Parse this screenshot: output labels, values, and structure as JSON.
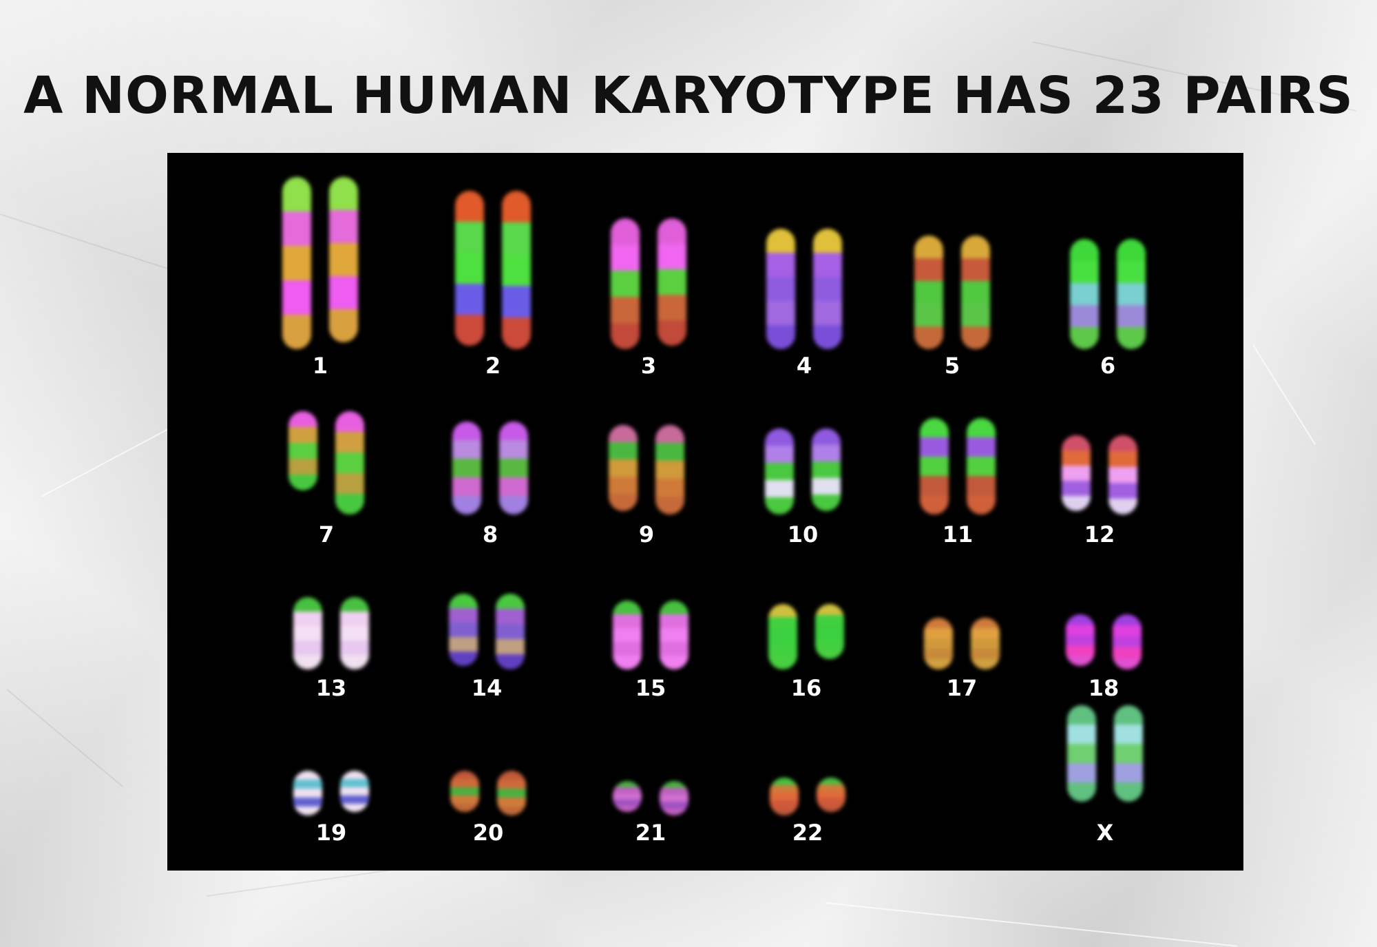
{
  "title": "A NORMAL HUMAN KARYOTYPE HAS 23 PAIRS",
  "pairs": [
    {
      "label": "1",
      "colors": [
        "#8fe04a",
        "#e46bd9",
        "#e0a83a",
        "#ee5cf0",
        "#d9a040"
      ]
    },
    {
      "label": "2",
      "colors": [
        "#e05a2a",
        "#58d84a",
        "#4ee03f",
        "#6b5ce8",
        "#cc4a3a"
      ]
    },
    {
      "label": "3",
      "colors": [
        "#e05fd8",
        "#f066f0",
        "#5ad040",
        "#c9673a",
        "#c24a3a"
      ]
    },
    {
      "label": "4",
      "colors": [
        "#e0c03a",
        "#a660e6",
        "#8f5ce0",
        "#a069e0",
        "#7a4fd8"
      ]
    },
    {
      "label": "5",
      "colors": [
        "#d8a83a",
        "#c75a3a",
        "#50c840",
        "#5bc548",
        "#c46a3a"
      ]
    },
    {
      "label": "6",
      "colors": [
        "#3fd83a",
        "#47e040",
        "#7ad0d0",
        "#9a8ad8",
        "#5dc84a"
      ]
    },
    {
      "label": "7",
      "colors": [
        "#e860e0",
        "#d0a040",
        "#5ad040",
        "#b8a040",
        "#48c840"
      ]
    },
    {
      "label": "8",
      "colors": [
        "#c75ae8",
        "#b98ae0",
        "#58b840",
        "#d06ad0",
        "#a080e0"
      ]
    },
    {
      "label": "9",
      "colors": [
        "#c86a9a",
        "#4ab840",
        "#d09a3a",
        "#d07a3a",
        "#c66a3a"
      ]
    },
    {
      "label": "10",
      "colors": [
        "#8f5ae0",
        "#b080e8",
        "#4ac840",
        "#e0e0f0",
        "#4ac840"
      ]
    },
    {
      "label": "11",
      "colors": [
        "#4ad840",
        "#9a5ae0",
        "#52d040",
        "#c05a3a",
        "#d0603a"
      ]
    },
    {
      "label": "12",
      "colors": [
        "#d0506a",
        "#e06a3a",
        "#f0a0f0",
        "#a060e0",
        "#e0d0f0"
      ]
    },
    {
      "label": "13",
      "colors": [
        "#48c040",
        "#f0d0f0",
        "#f4e0f4",
        "#e8c8f0",
        "#f0e0f0"
      ]
    },
    {
      "label": "14",
      "colors": [
        "#4ac840",
        "#a060d0",
        "#8060d0",
        "#c0a080",
        "#6040c0"
      ]
    },
    {
      "label": "15",
      "colors": [
        "#48c040",
        "#e070e0",
        "#f080f0",
        "#e070e0",
        "#f080f0"
      ]
    },
    {
      "label": "16",
      "colors": [
        "#d0c040",
        "#40d040",
        "#3ad040",
        "#40d040",
        "#48d040"
      ]
    },
    {
      "label": "17",
      "colors": [
        "#d07a3a",
        "#e0a040",
        "#d09a3a",
        "#c88a3a",
        "#d0a040"
      ]
    },
    {
      "label": "18",
      "colors": [
        "#a040e0",
        "#e040e0",
        "#c040e0",
        "#f040c0",
        "#e050d0"
      ]
    },
    {
      "label": "19",
      "colors": [
        "#f0e0f0",
        "#60c0d0",
        "#f0e0f0",
        "#6060d0",
        "#f0e0f0"
      ]
    },
    {
      "label": "20",
      "colors": [
        "#c05a3a",
        "#d06a3a",
        "#4ab040",
        "#d07a3a",
        "#c06a3a"
      ]
    },
    {
      "label": "21",
      "colors": [
        "#48b040",
        "#c060c0",
        "#d070d0",
        "#a050c0",
        "#c060c0"
      ]
    },
    {
      "label": "22",
      "colors": [
        "#48c040",
        "#d07a3a",
        "#e06a3a",
        "#d05a3a",
        "#c05a3a"
      ]
    },
    {
      "label": "X",
      "colors": [
        "#60c080",
        "#a0e0e0",
        "#70d070",
        "#a0a0e0",
        "#60c080"
      ]
    }
  ]
}
